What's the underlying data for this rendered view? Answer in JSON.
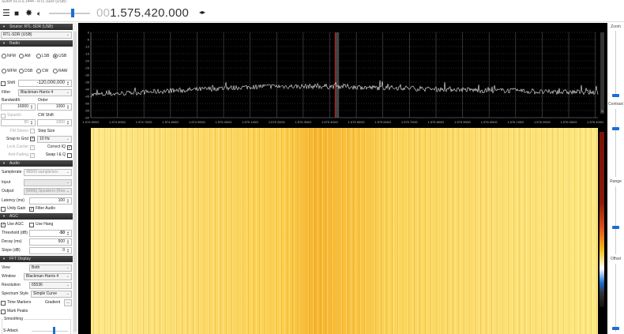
{
  "window": {
    "title": "SDR# v1.0.0.1444 - RTL-SDR (USB)"
  },
  "toolbar": {
    "menu_icon": "hamburger-icon",
    "stop_icon": "stop-icon",
    "settings_icon": "gear-icon",
    "audio_icon": "speaker-icon",
    "volume_level": 0.55,
    "frequency_dim": "00",
    "frequency": "1.575.420.000",
    "tune_arrows": "◂▸"
  },
  "source": {
    "header": "Source: RTL-SDR (USB)",
    "device": "RTL-SDR (USB)"
  },
  "radio": {
    "header": "Radio",
    "modes": [
      "NFM",
      "AM",
      "LSB",
      "USB",
      "WFM",
      "DSB",
      "CW",
      "RAW"
    ],
    "selected_mode": "USB",
    "shift_label": "Shift",
    "shift_value": "-120,000,000",
    "filter_label": "Filter",
    "filter_value": "Blackman-Harris 4",
    "bandwidth_label": "Bandwidth",
    "bandwidth_value": "16000",
    "order_label": "Order",
    "order_value": "1000",
    "squelch_label": "Squelch",
    "squelch_value": "50",
    "cw_shift_label": "CW Shift",
    "cw_shift_value": "1000",
    "fm_stereo_label": "FM Stereo",
    "step_size_label": "Step Size",
    "snap_label": "Snap to Grid",
    "step_value": "10 Hz",
    "lock_carrier_label": "Lock Carrier",
    "correct_iq_label": "Correct IQ",
    "anti_fading_label": "Anti-Fading",
    "swap_iq_label": "Swap I & Q"
  },
  "audio": {
    "header": "Audio",
    "samplerate_label": "Samplerate",
    "samplerate_value": "48000 sample/sec",
    "input_label": "Input",
    "input_value": "",
    "output_label": "Output",
    "output_value": "[MME] Speakers (Rea",
    "latency_label": "Latency (ms)",
    "latency_value": "100",
    "unity_gain_label": "Unity Gain",
    "filter_audio_label": "Filter Audio"
  },
  "agc": {
    "header": "AGC",
    "use_agc_label": "Use AGC",
    "use_hang_label": "Use Hang",
    "threshold_label": "Threshold (dB)",
    "threshold_value": "-50",
    "decay_label": "Decay (ms)",
    "decay_value": "500",
    "slope_label": "Slope (dB)",
    "slope_value": "0"
  },
  "fft": {
    "header": "FFT Display",
    "view_label": "View",
    "view_value": "Both",
    "window_label": "Window",
    "window_value": "Blackman-Harris 4",
    "resolution_label": "Resolution",
    "resolution_value": "65536",
    "style_label": "Spectrum Style",
    "style_value": "Simple Curve",
    "time_markers_label": "Time Markers",
    "gradient_label": "Gradient",
    "gradient_button": "...",
    "mark_peaks_label": "Mark Peaks",
    "smoothing_label": "Smoothing",
    "s_attack_label": "S-Attack"
  },
  "spectrum": {
    "y_ticks": [
      "0",
      "-5",
      "-10",
      "-15",
      "-20",
      "-25",
      "-30",
      "-35",
      "-40",
      "-45",
      "-50",
      "-55",
      "-60"
    ],
    "x_ticks": [
      "1.574 500G",
      "1.574 600G",
      "1.574 700G",
      "1.574 800G",
      "1.574 900G",
      "1.575 000G",
      "1.575 100G",
      "1.575 200G",
      "1.575 300G",
      "1.575 400G",
      "1.575 500G",
      "1.575 600G",
      "1.575 700G",
      "1.575 800G",
      "1.575 900G",
      "1.576 000G",
      "1.576 100G",
      "1.576 200G",
      "1.576 300G",
      "1.576 400G"
    ],
    "scroll_label": "5",
    "noise_floor_db": [
      -44,
      -43,
      -42,
      -41,
      -40,
      -39,
      -38,
      -38,
      -38,
      -38,
      -39,
      -39,
      -40,
      -40,
      -41,
      -41,
      -42,
      -42,
      -42
    ],
    "tuned_color": "#c0201a"
  },
  "side": {
    "zoom_label": "Zoom",
    "zoom_level": 0.0,
    "contrast_label": "Contrast",
    "contrast_level": 0.75,
    "range_label": "Range",
    "range_level": 0.35,
    "offset_label": "Offset",
    "offset_level": 0.0
  }
}
